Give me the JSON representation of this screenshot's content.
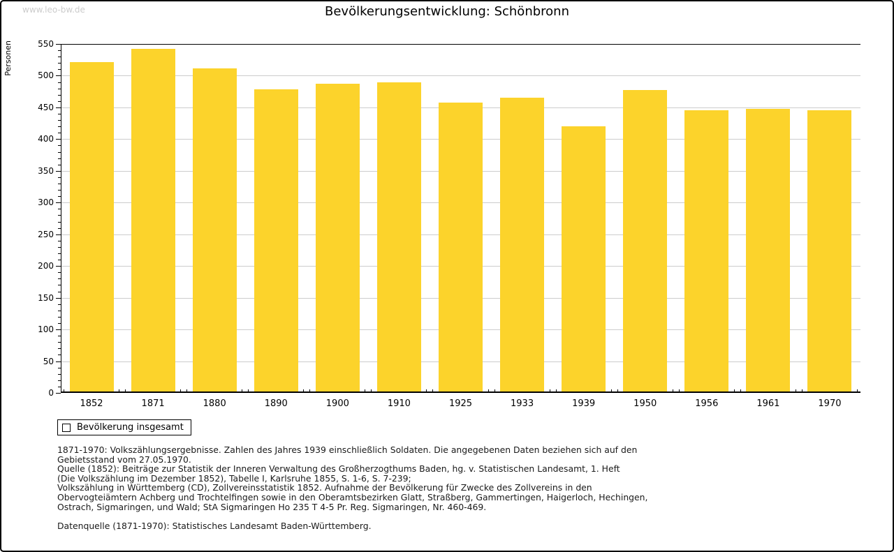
{
  "watermark": "www.leo-bw.de",
  "header": {
    "title": "Bevölkerungsentwicklung: Schönbronn"
  },
  "chart_data": {
    "type": "bar",
    "title": "Bevölkerungsentwicklung: Schönbronn",
    "categories": [
      "1852",
      "1871",
      "1880",
      "1890",
      "1900",
      "1910",
      "1925",
      "1933",
      "1939",
      "1950",
      "1956",
      "1961",
      "1970"
    ],
    "values": [
      521,
      542,
      512,
      478,
      487,
      489,
      458,
      465,
      420,
      477,
      446,
      448,
      445
    ],
    "series_name": "Bevölkerung insgesamt",
    "xlabel": "",
    "ylabel": "Personen",
    "ylim": [
      0,
      550
    ],
    "ytick_step": 50,
    "yminor_step": 10,
    "grid": true,
    "legend_position": "bottom-left",
    "bar_color": "#FCD32B",
    "grid_color": "#cccccc"
  },
  "legend": {
    "label": "Bevölkerung insgesamt",
    "swatch_color": "#FCD32B"
  },
  "footer": {
    "lines": [
      "1871-1970: Volkszählungsergebnisse. Zahlen des Jahres 1939 einschließlich Soldaten. Die angegebenen Daten beziehen sich auf den",
      "Gebietsstand vom 27.05.1970.",
      "Quelle (1852): Beiträge zur Statistik der Inneren Verwaltung des Großherzogthums Baden, hg. v. Statistischen Landesamt, 1. Heft",
      "(Die Volkszählung im Dezember 1852), Tabelle I, Karlsruhe 1855, S. 1-6, S. 7-239;",
      "Volkszählung in Württemberg (CD), Zollvereinsstatistik 1852. Aufnahme der Bevölkerung für Zwecke des Zollvereins in den",
      "Obervogteiämtern Achberg und Trochtelfingen sowie in den Oberamtsbezirken Glatt, Straßberg, Gammertingen, Haigerloch, Hechingen,",
      "Ostrach, Sigmaringen, und Wald; StA Sigmaringen Ho 235 T 4-5 Pr. Reg. Sigmaringen, Nr. 460-469.",
      "Datenquelle (1871-1970): Statistisches Landesamt Baden-Württemberg."
    ]
  }
}
